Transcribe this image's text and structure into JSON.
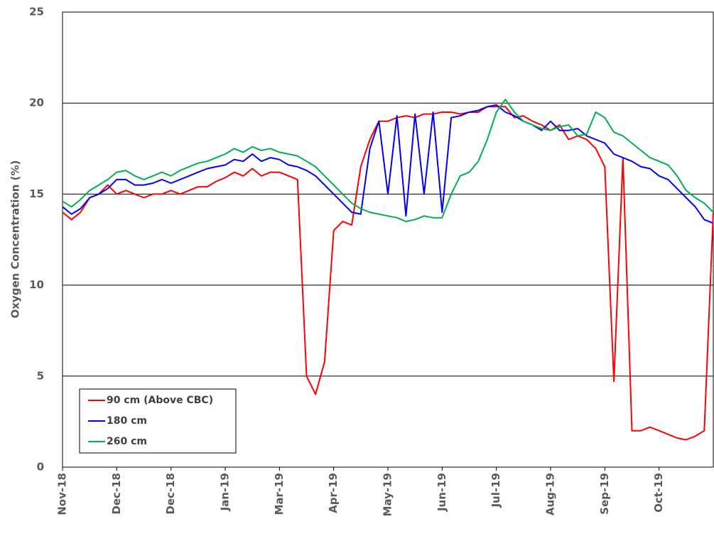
{
  "chart_data": {
    "type": "line",
    "y_label": "Oxygen Concentration (%)",
    "categories": [
      "Nov-18",
      null,
      null,
      null,
      null,
      null,
      "Dec-18",
      null,
      null,
      null,
      null,
      null,
      "Dec-18",
      null,
      null,
      null,
      null,
      null,
      "Jan-19",
      null,
      null,
      null,
      null,
      null,
      "Mar-19",
      null,
      null,
      null,
      null,
      null,
      "Apr-19",
      null,
      null,
      null,
      null,
      null,
      "May-19",
      null,
      null,
      null,
      null,
      null,
      "Jun-19",
      null,
      null,
      null,
      null,
      null,
      "Jul-19",
      null,
      null,
      null,
      null,
      null,
      "Aug-19",
      null,
      null,
      null,
      null,
      null,
      "Sep-19",
      null,
      null,
      null,
      null,
      null,
      "Oct-19",
      null,
      null,
      null,
      null,
      null,
      null
    ],
    "series": [
      {
        "name": "90 cm (Above CBC)",
        "color": "#ff0000",
        "values": [
          14.0,
          13.6,
          14.0,
          14.8,
          15.0,
          15.5,
          15.0,
          15.2,
          15.0,
          14.8,
          15.0,
          15.0,
          15.2,
          15.0,
          15.2,
          15.4,
          15.4,
          15.7,
          15.9,
          16.2,
          16.0,
          16.4,
          16.0,
          16.2,
          16.2,
          16.0,
          15.8,
          5.0,
          4.0,
          5.8,
          13.0,
          13.5,
          13.3,
          16.5,
          18.0,
          19.0,
          19.0,
          19.2,
          19.3,
          19.2,
          19.4,
          19.4,
          19.5,
          19.5,
          19.4,
          19.5,
          19.5,
          19.8,
          19.8,
          19.8,
          19.2,
          19.3,
          19.0,
          18.8,
          18.5,
          18.8,
          18.0,
          18.2,
          18.0,
          17.5,
          16.5,
          4.7,
          17.0,
          2.0,
          2.0,
          2.2,
          2.0,
          1.8,
          1.6,
          1.5,
          1.7,
          2.0,
          14.0
        ]
      },
      {
        "name": "180 cm",
        "color": "#0000ff",
        "values": [
          14.3,
          13.9,
          14.2,
          14.8,
          15.0,
          15.3,
          15.8,
          15.8,
          15.5,
          15.5,
          15.6,
          15.8,
          15.6,
          15.8,
          16.0,
          16.2,
          16.4,
          16.5,
          16.6,
          16.9,
          16.8,
          17.2,
          16.8,
          17.0,
          16.9,
          16.6,
          16.5,
          16.3,
          16.0,
          15.5,
          15.0,
          14.5,
          14.0,
          13.9,
          17.5,
          19.0,
          15.0,
          19.3,
          13.8,
          19.4,
          15.0,
          19.5,
          14.0,
          19.2,
          19.3,
          19.5,
          19.6,
          19.8,
          19.9,
          19.5,
          19.3,
          19.0,
          18.8,
          18.5,
          19.0,
          18.5,
          18.5,
          18.6,
          18.2,
          18.0,
          17.8,
          17.2,
          17.0,
          16.8,
          16.5,
          16.4,
          16.0,
          15.8,
          15.3,
          14.8,
          14.3,
          13.6,
          13.4
        ]
      },
      {
        "name": "260 cm",
        "color": "#00b050",
        "values": [
          14.6,
          14.3,
          14.7,
          15.2,
          15.5,
          15.8,
          16.2,
          16.3,
          16.0,
          15.8,
          16.0,
          16.2,
          16.0,
          16.3,
          16.5,
          16.7,
          16.8,
          17.0,
          17.2,
          17.5,
          17.3,
          17.6,
          17.4,
          17.5,
          17.3,
          17.2,
          17.1,
          16.8,
          16.5,
          16.0,
          15.5,
          15.0,
          14.5,
          14.2,
          14.0,
          13.9,
          13.8,
          13.7,
          13.5,
          13.6,
          13.8,
          13.7,
          13.7,
          15.0,
          16.0,
          16.2,
          16.8,
          18.0,
          19.5,
          20.2,
          19.5,
          19.0,
          18.8,
          18.6,
          18.5,
          18.7,
          18.8,
          18.2,
          18.3,
          19.5,
          19.2,
          18.4,
          18.2,
          17.8,
          17.4,
          17.0,
          16.8,
          16.6,
          16.0,
          15.2,
          14.8,
          14.5,
          14.0
        ]
      }
    ],
    "ylim": [
      0,
      25
    ],
    "yticks": [
      0,
      5,
      10,
      15,
      20,
      25
    ],
    "grid": true,
    "legend": "lower left"
  }
}
